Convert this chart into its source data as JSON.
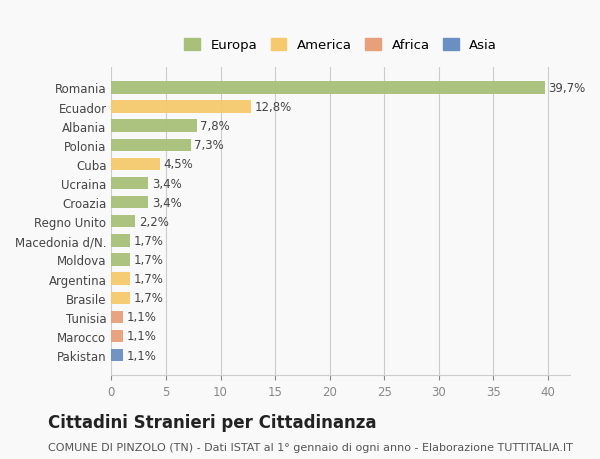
{
  "countries": [
    "Romania",
    "Ecuador",
    "Albania",
    "Polonia",
    "Cuba",
    "Ucraina",
    "Croazia",
    "Regno Unito",
    "Macedonia d/N.",
    "Moldova",
    "Argentina",
    "Brasile",
    "Tunisia",
    "Marocco",
    "Pakistan"
  ],
  "values": [
    39.7,
    12.8,
    7.8,
    7.3,
    4.5,
    3.4,
    3.4,
    2.2,
    1.7,
    1.7,
    1.7,
    1.7,
    1.1,
    1.1,
    1.1
  ],
  "labels": [
    "39,7%",
    "12,8%",
    "7,8%",
    "7,3%",
    "4,5%",
    "3,4%",
    "3,4%",
    "2,2%",
    "1,7%",
    "1,7%",
    "1,7%",
    "1,7%",
    "1,1%",
    "1,1%",
    "1,1%"
  ],
  "continents": [
    "Europa",
    "America",
    "Europa",
    "Europa",
    "America",
    "Europa",
    "Europa",
    "Europa",
    "Europa",
    "Europa",
    "America",
    "America",
    "Africa",
    "Africa",
    "Asia"
  ],
  "continent_colors": {
    "Europa": "#a8c07a",
    "America": "#f5c96c",
    "Africa": "#e8a07a",
    "Asia": "#6a8fc0"
  },
  "legend_order": [
    "Europa",
    "America",
    "Africa",
    "Asia"
  ],
  "legend_colors": {
    "Europa": "#a8c07a",
    "America": "#f5c96c",
    "Africa": "#e8a07a",
    "Asia": "#6a8fc0"
  },
  "xlim": [
    0,
    42
  ],
  "xticks": [
    0,
    5,
    10,
    15,
    20,
    25,
    30,
    35,
    40
  ],
  "title_main": "Cittadini Stranieri per Cittadinanza",
  "title_sub": "COMUNE DI PINZOLO (TN) - Dati ISTAT al 1° gennaio di ogni anno - Elaborazione TUTTITALIA.IT",
  "background_color": "#f9f9f9",
  "grid_color": "#cccccc",
  "label_fontsize": 8.5,
  "tick_fontsize": 8.5,
  "title_fontsize": 12,
  "subtitle_fontsize": 8
}
